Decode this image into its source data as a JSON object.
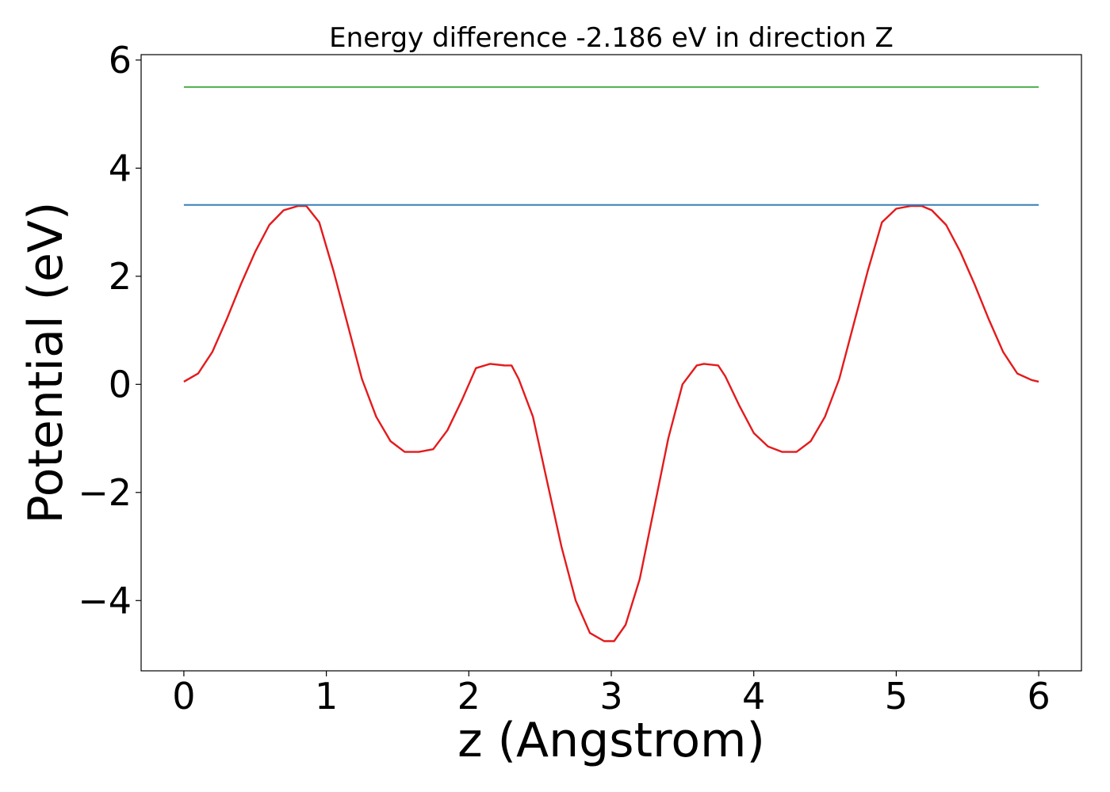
{
  "chart_data": {
    "type": "line",
    "title": "Energy difference -2.186 eV in direction Z",
    "xlabel": "z (Angstrom)",
    "ylabel": "Potential (eV)",
    "xlim": [
      -0.3,
      6.3
    ],
    "ylim": [
      -5.3,
      6.1
    ],
    "xticks": [
      0,
      1,
      2,
      3,
      4,
      5,
      6
    ],
    "xtick_labels": [
      "0",
      "1",
      "2",
      "3",
      "4",
      "5",
      "6"
    ],
    "yticks": [
      -4,
      -2,
      0,
      2,
      4,
      6
    ],
    "ytick_labels": [
      "−4",
      "−2",
      "0",
      "2",
      "4",
      "6"
    ],
    "grid": false,
    "colors": {
      "potential": "#e41a1c",
      "barrier": "#377eb8",
      "upper": "#4daf4a"
    },
    "series": [
      {
        "color": "#e41a1c",
        "x": [
          0,
          0.1,
          0.2,
          0.3,
          0.4,
          0.5,
          0.6,
          0.7,
          0.8,
          0.86,
          0.95,
          1.05,
          1.15,
          1.25,
          1.35,
          1.45,
          1.55,
          1.65,
          1.75,
          1.85,
          1.95,
          2.05,
          2.15,
          2.25,
          2.3,
          2.35,
          2.45,
          2.55,
          2.65,
          2.75,
          2.85,
          2.95,
          3.02,
          3.1,
          3.2,
          3.3,
          3.4,
          3.5,
          3.6,
          3.65,
          3.75,
          3.8,
          3.9,
          4.0,
          4.1,
          4.2,
          4.3,
          4.4,
          4.5,
          4.6,
          4.7,
          4.8,
          4.9,
          5.0,
          5.1,
          5.18,
          5.25,
          5.35,
          5.45,
          5.55,
          5.65,
          5.75,
          5.85,
          5.95,
          6.0
        ],
        "y": [
          0.05,
          0.2,
          0.6,
          1.2,
          1.85,
          2.45,
          2.95,
          3.22,
          3.3,
          3.3,
          3.0,
          2.1,
          1.1,
          0.1,
          -0.6,
          -1.05,
          -1.25,
          -1.25,
          -1.2,
          -0.85,
          -0.3,
          0.3,
          0.38,
          0.35,
          0.35,
          0.1,
          -0.6,
          -1.8,
          -3.0,
          -4.0,
          -4.6,
          -4.75,
          -4.75,
          -4.45,
          -3.6,
          -2.3,
          -1.0,
          0.0,
          0.35,
          0.38,
          0.35,
          0.15,
          -0.4,
          -0.9,
          -1.15,
          -1.25,
          -1.25,
          -1.05,
          -0.6,
          0.1,
          1.1,
          2.1,
          3.0,
          3.25,
          3.3,
          3.3,
          3.22,
          2.95,
          2.45,
          1.85,
          1.2,
          0.6,
          0.2,
          0.08,
          0.05
        ]
      },
      {
        "color": "#377eb8",
        "x": [
          0,
          6
        ],
        "y": [
          3.32,
          3.32
        ]
      },
      {
        "color": "#4daf4a",
        "x": [
          0,
          6
        ],
        "y": [
          5.5,
          5.5
        ]
      }
    ]
  }
}
